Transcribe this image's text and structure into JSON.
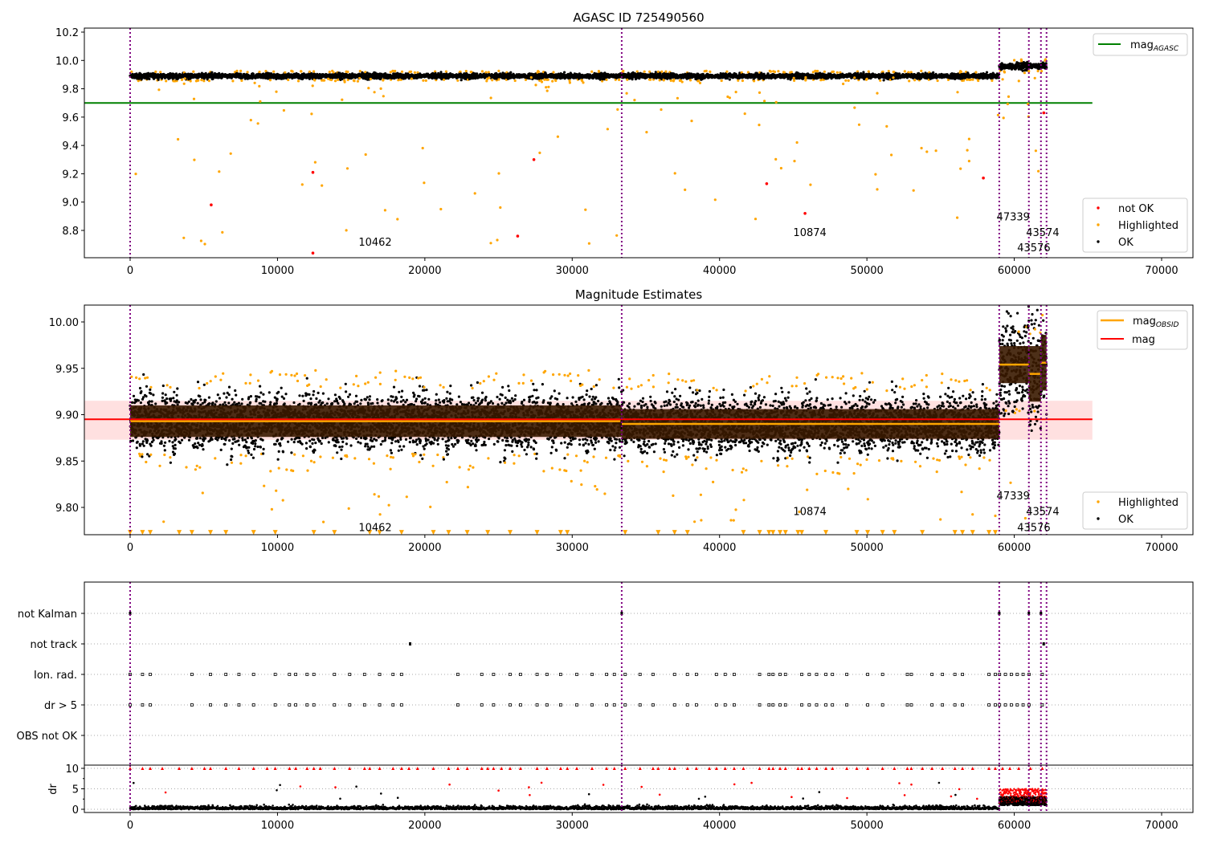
{
  "chart_data": [
    {
      "type": "scatter",
      "title": "AGASC ID 725490560",
      "xlabel": "",
      "ylabel": "",
      "xlim": [
        -3100,
        72100
      ],
      "ylim": [
        8.607,
        10.228
      ],
      "x_ticks": [
        0,
        10000,
        20000,
        30000,
        40000,
        50000,
        60000,
        70000
      ],
      "y_ticks": [
        "8.8",
        "9.0",
        "9.2",
        "9.4",
        "9.6",
        "9.8",
        "10.0",
        "10.2"
      ],
      "reference_line": {
        "name": "mag_AGASC",
        "y": 9.7,
        "x_range": [
          -3100,
          65300
        ],
        "color": "#008000"
      },
      "legend_top": {
        "placement": "top-right",
        "entries": [
          {
            "label": "mag",
            "sub": "AGASC",
            "color": "#008000"
          }
        ]
      },
      "legend_bottom": {
        "placement": "bottom-right",
        "entries": [
          {
            "label": "not OK",
            "color": "#ff0000"
          },
          {
            "label": "Highlighted",
            "color": "#ffa500"
          },
          {
            "label": "OK",
            "color": "#000000"
          }
        ]
      },
      "segments": [
        {
          "x": [
            0,
            58980
          ],
          "mag": 9.89,
          "spread": 0.03
        },
        {
          "x": [
            58980,
            62190
          ],
          "mag": 9.96,
          "spread": 0.04
        }
      ],
      "not_ok_points": [
        [
          5500,
          8.98
        ],
        [
          12400,
          9.21
        ],
        [
          12400,
          8.64
        ],
        [
          27400,
          9.3
        ],
        [
          26300,
          8.76
        ],
        [
          43200,
          9.13
        ],
        [
          45800,
          8.92
        ],
        [
          57900,
          9.17
        ],
        [
          62000,
          9.63
        ]
      ],
      "annotations": [
        {
          "text": "10462",
          "x": 15500,
          "y": 8.72
        },
        {
          "text": "10874",
          "x": 45000,
          "y": 8.79
        },
        {
          "text": "47339",
          "x": 58800,
          "y": 8.9
        },
        {
          "text": "43574",
          "x": 60800,
          "y": 8.79
        },
        {
          "text": "43576",
          "x": 60200,
          "y": 8.68
        }
      ]
    },
    {
      "type": "scatter",
      "title": "Magnitude Estimates",
      "xlim": [
        -3100,
        72100
      ],
      "ylim": [
        9.771,
        10.018
      ],
      "x_ticks": [
        0,
        10000,
        20000,
        30000,
        40000,
        50000,
        60000,
        70000
      ],
      "y_ticks": [
        "9.80",
        "9.85",
        "9.90",
        "9.95",
        "10.00"
      ],
      "mag": {
        "value": 9.895,
        "band": [
          9.873,
          9.915
        ],
        "x_range": [
          -3100,
          65300
        ],
        "color": "#ff0000"
      },
      "legend_top": {
        "placement": "top-right",
        "entries": [
          {
            "label": "mag",
            "sub": "OBSID",
            "color": "#ffa500"
          },
          {
            "label": "mag",
            "sub": "",
            "color": "#ff0000"
          }
        ]
      },
      "legend_bottom": {
        "placement": "bottom-right",
        "entries": [
          {
            "label": "Highlighted",
            "color": "#ffa500"
          },
          {
            "label": "OK",
            "color": "#000000"
          }
        ]
      },
      "obsid_segments": [
        {
          "x": [
            0,
            33360
          ],
          "mag": 9.893,
          "err": 0.017
        },
        {
          "x": [
            33360,
            58980
          ],
          "mag": 9.89,
          "err": 0.016
        },
        {
          "x": [
            58980,
            60990
          ],
          "mag": 9.954,
          "err": 0.02
        },
        {
          "x": [
            60990,
            61810
          ],
          "mag": 9.944,
          "err": 0.03
        },
        {
          "x": [
            61810,
            62190
          ],
          "mag": 9.956,
          "err": 0.03
        }
      ],
      "annotations": [
        {
          "text": "10462",
          "x": 15500,
          "y": 9.779
        },
        {
          "text": "10874",
          "x": 45000,
          "y": 9.796
        },
        {
          "text": "47339",
          "x": 58800,
          "y": 9.813
        },
        {
          "text": "43574",
          "x": 60800,
          "y": 9.796
        },
        {
          "text": "43576",
          "x": 60200,
          "y": 9.779
        }
      ]
    },
    {
      "type": "scatter",
      "title": "",
      "categories": [
        "not Kalman",
        "not track",
        "Ion. rad.",
        "dr > 5",
        "OBS not OK"
      ],
      "not_kalman_x": [
        0,
        33360,
        58980,
        60990,
        61810
      ],
      "not_track_x": [
        19000,
        62000
      ]
    },
    {
      "type": "scatter",
      "ylabel": "dr",
      "ylim": [
        -0.78,
        10.78
      ],
      "y_ticks": [
        "0",
        "5",
        "10"
      ],
      "x_ticks": [
        0,
        10000,
        20000,
        30000,
        40000,
        50000,
        60000,
        70000
      ],
      "clip_value": 10
    }
  ],
  "obsid_boundaries": [
    0,
    33360,
    58980,
    60990,
    61810,
    62190
  ]
}
